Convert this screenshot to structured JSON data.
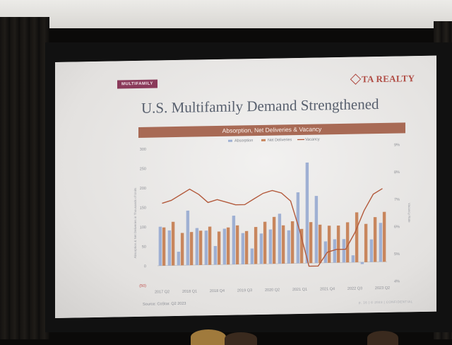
{
  "slide": {
    "section_tag": "MULTIFAMILY",
    "logo_text": "TA REALTY",
    "title": "U.S. Multifamily Demand Strengthened",
    "chart_title": "Absorption, Net Deliveries & Vacancy",
    "source": "Source: CoStar. Q2 2023",
    "footer_right": "p. 16 | © 2023 | CONFIDENTIAL",
    "y_left_label": "Absorption & Net Deliveries in Thousands of Units",
    "y_right_label": "Vacancy Rate"
  },
  "colors": {
    "absorption": "#9fb0d3",
    "net_deliveries": "#c8865d",
    "vacancy": "#b35a3c",
    "band": "#a86a55",
    "title": "#58606e",
    "tag": "#8a3a5a"
  },
  "chart_data": {
    "type": "bar",
    "title": "Absorption, Net Deliveries & Vacancy",
    "ylabel": "Absorption & Net Deliveries in Thousands of Units",
    "y2label": "Vacancy Rate",
    "ylim": [
      -50,
      300
    ],
    "y2lim": [
      4,
      9
    ],
    "y_ticks": [
      "300",
      "250",
      "200",
      "150",
      "100",
      "50",
      "0",
      "(50)"
    ],
    "y2_ticks": [
      "9%",
      "8%",
      "7%",
      "6%",
      "5%",
      "4%"
    ],
    "x_tick_labels": [
      "2017 Q2",
      "2018 Q1",
      "2018 Q4",
      "2019 Q3",
      "2020 Q2",
      "2021 Q1",
      "2021 Q4",
      "2022 Q3",
      "2023 Q2"
    ],
    "legend_position": "top",
    "categories": [
      "2017 Q2",
      "2017 Q3",
      "2017 Q4",
      "2018 Q1",
      "2018 Q2",
      "2018 Q3",
      "2018 Q4",
      "2019 Q1",
      "2019 Q2",
      "2019 Q3",
      "2019 Q4",
      "2020 Q1",
      "2020 Q2",
      "2020 Q3",
      "2020 Q4",
      "2021 Q1",
      "2021 Q2",
      "2021 Q3",
      "2021 Q4",
      "2022 Q1",
      "2022 Q2",
      "2022 Q3",
      "2022 Q4",
      "2023 Q1",
      "2023 Q2"
    ],
    "series": [
      {
        "name": "Absorption",
        "kind": "bar",
        "values": [
          100,
          90,
          35,
          140,
          95,
          88,
          48,
          92,
          125,
          80,
          40,
          78,
          88,
          128,
          85,
          182,
          258,
          172,
          55,
          60,
          60,
          18,
          -5,
          58,
          100
        ]
      },
      {
        "name": "Net Deliveries",
        "kind": "bar",
        "values": [
          98,
          112,
          83,
          85,
          88,
          98,
          85,
          95,
          100,
          85,
          95,
          108,
          120,
          98,
          108,
          88,
          105,
          98,
          95,
          95,
          103,
          128,
          98,
          115,
          128
        ]
      },
      {
        "name": "Vacancy",
        "kind": "line",
        "axis": "right",
        "values": [
          7.0,
          7.1,
          7.3,
          7.5,
          7.3,
          7.0,
          7.1,
          7.0,
          6.9,
          6.9,
          7.1,
          7.3,
          7.4,
          7.3,
          7.0,
          5.9,
          4.6,
          4.6,
          5.1,
          5.2,
          5.2,
          5.8,
          6.6,
          7.2,
          7.4
        ]
      }
    ]
  }
}
